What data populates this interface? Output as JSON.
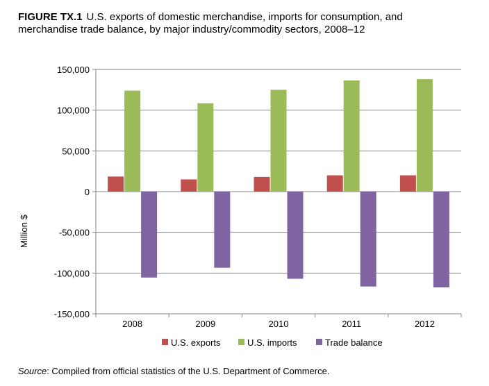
{
  "title": {
    "label": "FIGURE TX.1",
    "text": "U.S. exports of domestic merchandise, imports for consumption, and merchandise trade balance, by major industry/commodity sectors, 2008–12"
  },
  "source": {
    "label": "Source",
    "text": ": Compiled from official statistics of the U.S. Department of Commerce."
  },
  "colors": {
    "exports": "#c0504d",
    "imports": "#9bbb59",
    "balance": "#8064a2",
    "gridline": "#868686"
  },
  "chart_data": {
    "type": "bar",
    "title": "",
    "xlabel": "",
    "ylabel": "Million $",
    "categories": [
      "2008",
      "2009",
      "2010",
      "2011",
      "2012"
    ],
    "ylim": [
      -150000,
      150000
    ],
    "yticks": [
      150000,
      100000,
      50000,
      0,
      -50000,
      -100000,
      -150000
    ],
    "ytick_labels": [
      "150,000",
      "100,000",
      "50,000",
      "0",
      "-50,000",
      "-100,000",
      "-150,000"
    ],
    "grid": true,
    "legend": "bottom",
    "series": [
      {
        "name": "U.S. exports",
        "values": [
          18500,
          15000,
          18000,
          20000,
          20000
        ]
      },
      {
        "name": "U.S. imports",
        "values": [
          124000,
          108500,
          125000,
          136500,
          138000
        ]
      },
      {
        "name": "Trade balance",
        "values": [
          -105500,
          -93500,
          -107000,
          -116500,
          -117500
        ]
      }
    ]
  }
}
